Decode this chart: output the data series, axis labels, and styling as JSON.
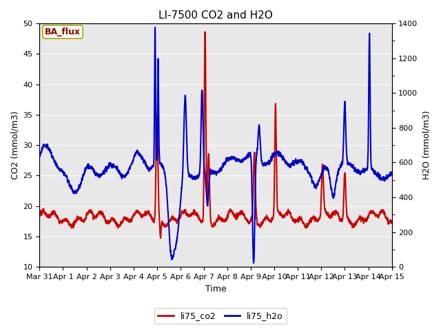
{
  "title": "LI-7500 CO2 and H2O",
  "xlabel": "Time",
  "ylabel_left": "CO2 (mmol/m3)",
  "ylabel_right": "H2O (mmol/m3)",
  "ylim_left": [
    10,
    50
  ],
  "ylim_right": [
    0,
    1400
  ],
  "yticks_left": [
    10,
    15,
    20,
    25,
    30,
    35,
    40,
    45,
    50
  ],
  "yticks_right": [
    0,
    200,
    400,
    600,
    800,
    1000,
    1200,
    1400
  ],
  "bg_color": "#e8e8e8",
  "line_color_co2": "#cc0000",
  "line_color_h2o": "#0000cc",
  "legend_labels": [
    "li75_co2",
    "li75_h2o"
  ],
  "annotation_text": "BA_flux",
  "annotation_bg": "#fffff0",
  "annotation_border": "#aaa800",
  "annotation_text_color": "#880000",
  "title_fontsize": 11,
  "axis_fontsize": 9,
  "tick_fontsize": 8,
  "legend_fontsize": 9,
  "linewidth_co2": 1.5,
  "linewidth_h2o": 1.5
}
